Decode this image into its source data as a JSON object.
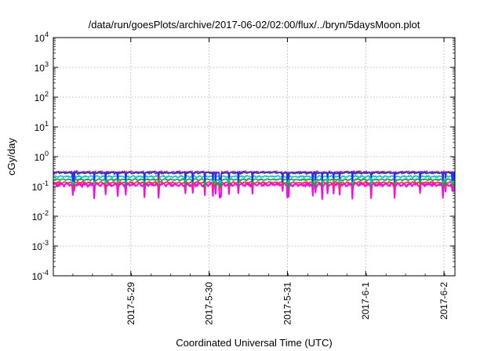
{
  "chart_data": {
    "type": "line",
    "title": "/data/run/goesPlots/archive/2017-06-02/02:00/flux/../bryn/5daysMoon.plot",
    "xlabel": "Coordinated Universal Time (UTC)",
    "ylabel": "cGy/day",
    "y_scale": "log",
    "ylim_exponents": [
      -4,
      4
    ],
    "y_ticks": [
      {
        "base": "10",
        "exp": "-4"
      },
      {
        "base": "10",
        "exp": "-3"
      },
      {
        "base": "10",
        "exp": "-2"
      },
      {
        "base": "10",
        "exp": "-1"
      },
      {
        "base": "10",
        "exp": "0"
      },
      {
        "base": "10",
        "exp": "1"
      },
      {
        "base": "10",
        "exp": "2"
      },
      {
        "base": "10",
        "exp": "3"
      },
      {
        "base": "10",
        "exp": "4"
      }
    ],
    "xlim_days": [
      0,
      5.13
    ],
    "x_ticks": [
      {
        "label": "2017-5-29",
        "day": 0.99
      },
      {
        "label": "2017-5-30",
        "day": 1.99
      },
      {
        "label": "2017-5-31",
        "day": 2.99
      },
      {
        "label": "2017-6-1",
        "day": 3.99
      },
      {
        "label": "2017-6-2",
        "day": 4.99
      }
    ],
    "x_origin_note": "day 0 = approx. 2017-05-28 00:00 UTC",
    "grid": true,
    "legend": "none",
    "series": [
      {
        "color": "#ff00ff",
        "level": 0.115,
        "variability": 0.18,
        "dip_depth": 0.45
      },
      {
        "color": "#ff3030",
        "level": 0.135,
        "variability": 0.1,
        "dip_depth": 0.25
      },
      {
        "color": "#00aa55",
        "level": 0.17,
        "variability": 0.1,
        "dip_depth": 0.25
      },
      {
        "color": "#00c8c8",
        "level": 0.215,
        "variability": 0.1,
        "dip_depth": 0.25
      },
      {
        "color": "#ff2020",
        "level": 0.3,
        "variability": 0.12,
        "dip_depth": 0.3
      },
      {
        "color": "#2a2aff",
        "level": 0.29,
        "variability": 0.12,
        "dip_depth": 0.3
      }
    ]
  }
}
